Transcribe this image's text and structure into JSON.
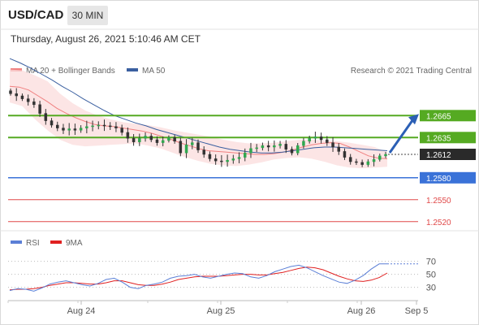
{
  "header": {
    "symbol": "USD/CAD",
    "timeframe": "30 MIN"
  },
  "timestamp": "Thursday, August 26, 2021 5:10:46 AM CET",
  "legend": {
    "ma20": {
      "label": "MA 20 + Bollinger Bands",
      "color": "#f08080"
    },
    "ma50": {
      "label": "MA 50",
      "color": "#3a5fa0"
    }
  },
  "watermark": "Research © 2021 Trading Central",
  "rsi_legend": {
    "rsi": {
      "label": "RSI",
      "color": "#5b7fd6"
    },
    "ma9": {
      "label": "9MA",
      "color": "#e02020"
    }
  },
  "chart_data": [
    {
      "type": "candlestick",
      "title": "USD/CAD 30 MIN",
      "x_ticks": [
        "Aug 24",
        "Aug 25",
        "Aug 26",
        "Sep 5"
      ],
      "price_range": [
        1.2512,
        1.2712
      ],
      "last_price": 1.2612,
      "levels": [
        {
          "label": "1.2665",
          "value": 1.2665,
          "kind": "resistance",
          "color": "#55aa22"
        },
        {
          "label": "1.2635",
          "value": 1.2635,
          "kind": "resistance",
          "color": "#55aa22"
        },
        {
          "label": "1.2580",
          "value": 1.258,
          "kind": "pivot",
          "color": "#3a72d8"
        },
        {
          "label": "1.2550",
          "value": 1.255,
          "kind": "support",
          "color": "#e04848"
        },
        {
          "label": "1.2520",
          "value": 1.252,
          "kind": "support",
          "color": "#e04848"
        }
      ],
      "last_price_label": "1.2612",
      "forecast": {
        "from": 1.2612,
        "to": 1.2665,
        "direction": "up"
      },
      "close_path": [
        1.2695,
        1.2692,
        1.2688,
        1.2684,
        1.268,
        1.2668,
        1.2658,
        1.2652,
        1.2648,
        1.2645,
        1.2647,
        1.2645,
        1.2648,
        1.265,
        1.2651,
        1.2652,
        1.2651,
        1.265,
        1.2648,
        1.2642,
        1.2634,
        1.2629,
        1.2634,
        1.2637,
        1.2632,
        1.2628,
        1.2631,
        1.2635,
        1.263,
        1.2614,
        1.2625,
        1.2628,
        1.2618,
        1.2612,
        1.2606,
        1.2603,
        1.2602,
        1.2604,
        1.2606,
        1.2608,
        1.2614,
        1.262,
        1.2621,
        1.2624,
        1.2622,
        1.2624,
        1.2626,
        1.2619,
        1.2614,
        1.2624,
        1.263,
        1.2634,
        1.2636,
        1.2632,
        1.2628,
        1.2622,
        1.2616,
        1.2608,
        1.2602,
        1.2601,
        1.2598,
        1.2602,
        1.2605,
        1.261,
        1.2612
      ],
      "ma20": [
        1.2705,
        1.2704,
        1.27,
        1.2692,
        1.2684,
        1.2675,
        1.2668,
        1.2662,
        1.2657,
        1.2653,
        1.2651,
        1.265,
        1.2648,
        1.2646,
        1.2644,
        1.2641,
        1.2637,
        1.2633,
        1.2628,
        1.2624,
        1.262,
        1.2617,
        1.2616,
        1.2615,
        1.2614,
        1.2613,
        1.2612,
        1.2612,
        1.2613,
        1.2615,
        1.2618,
        1.2622,
        1.2625,
        1.2627,
        1.2628,
        1.2627,
        1.2622,
        1.2616,
        1.261,
        1.2607,
        1.2606
      ],
      "ma50": [
        1.2743,
        1.2737,
        1.273,
        1.2722,
        1.2714,
        1.2705,
        1.2697,
        1.2688,
        1.268,
        1.2672,
        1.2665,
        1.266,
        1.2655,
        1.2651,
        1.2646,
        1.2642,
        1.2638,
        1.2634,
        1.263,
        1.2626,
        1.2622,
        1.2619,
        1.2617,
        1.2615,
        1.2614,
        1.2614,
        1.2615,
        1.2617,
        1.2619,
        1.2621,
        1.2622,
        1.2622,
        1.2621,
        1.262,
        1.2619,
        1.2618,
        1.2617
      ],
      "bb_upper": [
        1.2728,
        1.2727,
        1.272,
        1.2712,
        1.2695,
        1.2682,
        1.2672,
        1.2665,
        1.266,
        1.2656,
        1.2654,
        1.2652,
        1.2649,
        1.2645,
        1.2642,
        1.2639,
        1.2636,
        1.2632,
        1.2629,
        1.2627,
        1.2627,
        1.2628,
        1.263,
        1.2632,
        1.2632,
        1.2631,
        1.263,
        1.2628,
        1.2625,
        1.2622,
        1.2615
      ],
      "bb_lower": [
        1.2683,
        1.2678,
        1.266,
        1.2645,
        1.2632,
        1.2625,
        1.2623,
        1.2624,
        1.2625,
        1.2626,
        1.2627,
        1.2624,
        1.262,
        1.2614,
        1.2608,
        1.2603,
        1.2599,
        1.2597,
        1.2596,
        1.2598,
        1.2601,
        1.2605,
        1.2607,
        1.2608,
        1.2606,
        1.2602,
        1.2597,
        1.2594,
        1.2593,
        1.2594,
        1.2595
      ]
    },
    {
      "type": "line",
      "title": "RSI",
      "y_ticks": [
        "70",
        "50",
        "30"
      ],
      "levels": [
        70,
        50,
        30
      ],
      "series": [
        {
          "name": "RSI",
          "values": [
            25,
            28,
            27,
            24,
            29,
            35,
            38,
            40,
            37,
            34,
            32,
            36,
            42,
            44,
            38,
            30,
            28,
            33,
            35,
            38,
            44,
            47,
            48,
            50,
            46,
            44,
            47,
            50,
            52,
            51,
            46,
            44,
            48,
            54,
            58,
            62,
            64,
            60,
            54,
            48,
            43,
            38,
            36,
            41,
            48,
            58,
            66,
            66
          ]
        },
        {
          "name": "9MA",
          "values": [
            26,
            27,
            27,
            28,
            30,
            33,
            35,
            37,
            37,
            36,
            35,
            35,
            37,
            40,
            40,
            37,
            34,
            33,
            33,
            35,
            38,
            42,
            44,
            46,
            47,
            47,
            47,
            48,
            49,
            50,
            50,
            49,
            49,
            51,
            53,
            56,
            59,
            61,
            60,
            57,
            52,
            47,
            43,
            40,
            39,
            41,
            45,
            52
          ]
        }
      ]
    }
  ]
}
